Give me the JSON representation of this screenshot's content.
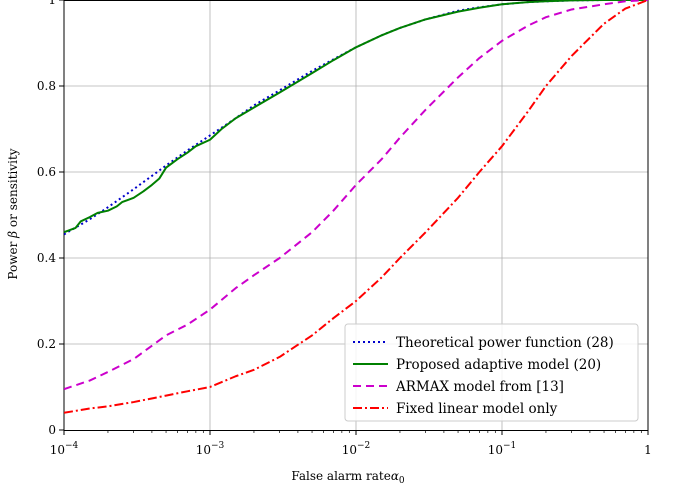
{
  "chart_data": {
    "type": "line",
    "xlabel": "False alarm rate",
    "xlabel_symbol": "α",
    "xlabel_sub": "0",
    "ylabel": "Power",
    "ylabel_symbol": "β",
    "ylabel_suffix": "or sensitivity",
    "x_scale": "log",
    "xlim": [
      0.0001,
      1
    ],
    "ylim": [
      0,
      1
    ],
    "grid": true,
    "legend_position": "bottom-right",
    "x_ticks": [
      {
        "value": 0.0001,
        "base": "10",
        "exp": "−4"
      },
      {
        "value": 0.001,
        "base": "10",
        "exp": "−3"
      },
      {
        "value": 0.01,
        "base": "10",
        "exp": "−2"
      },
      {
        "value": 0.1,
        "base": "10",
        "exp": "−1"
      },
      {
        "value": 1,
        "base": "1",
        "exp": ""
      }
    ],
    "y_ticks": [
      {
        "value": 0,
        "label": "0"
      },
      {
        "value": 0.2,
        "label": "0.2"
      },
      {
        "value": 0.4,
        "label": "0.4"
      },
      {
        "value": 0.6,
        "label": "0.6"
      },
      {
        "value": 0.8,
        "label": "0.8"
      },
      {
        "value": 1,
        "label": "1"
      }
    ],
    "series": [
      {
        "name": "Theoretical power function (28)",
        "color": "#0000cc",
        "dash": "2,3",
        "x": [
          0.0001,
          0.00015,
          0.0002,
          0.0003,
          0.0005,
          0.0007,
          0.001,
          0.0015,
          0.002,
          0.003,
          0.005,
          0.007,
          0.01,
          0.015,
          0.02,
          0.03,
          0.05,
          0.07,
          0.1,
          0.15,
          0.2,
          0.3,
          0.5,
          0.7,
          1
        ],
        "y": [
          0.455,
          0.49,
          0.518,
          0.56,
          0.615,
          0.65,
          0.685,
          0.725,
          0.755,
          0.79,
          0.835,
          0.862,
          0.89,
          0.918,
          0.935,
          0.955,
          0.975,
          0.983,
          0.99,
          0.995,
          0.997,
          0.999,
          1.0,
          1.0,
          1.0
        ]
      },
      {
        "name": "Proposed adaptive model (20)",
        "color": "#008000",
        "dash": "",
        "x": [
          0.0001,
          0.00012,
          0.00013,
          0.00015,
          0.00017,
          0.0002,
          0.00023,
          0.00025,
          0.0003,
          0.00035,
          0.0004,
          0.00045,
          0.0005,
          0.0006,
          0.0007,
          0.0008,
          0.001,
          0.0012,
          0.0015,
          0.002,
          0.003,
          0.005,
          0.007,
          0.01,
          0.015,
          0.02,
          0.03,
          0.05,
          0.07,
          0.1,
          0.15,
          0.2,
          0.3,
          0.5,
          0.7,
          1
        ],
        "y": [
          0.46,
          0.47,
          0.485,
          0.495,
          0.505,
          0.51,
          0.52,
          0.53,
          0.54,
          0.555,
          0.57,
          0.585,
          0.61,
          0.63,
          0.645,
          0.66,
          0.675,
          0.7,
          0.725,
          0.75,
          0.785,
          0.83,
          0.86,
          0.89,
          0.918,
          0.935,
          0.955,
          0.973,
          0.982,
          0.99,
          0.995,
          0.997,
          0.999,
          1.0,
          1.0,
          1.0
        ]
      },
      {
        "name": "ARMAX model from [13]",
        "color": "#cc00cc",
        "dash": "8,5",
        "x": [
          0.0001,
          0.00015,
          0.0002,
          0.0003,
          0.0005,
          0.0007,
          0.001,
          0.0015,
          0.002,
          0.003,
          0.005,
          0.007,
          0.01,
          0.015,
          0.02,
          0.03,
          0.05,
          0.07,
          0.1,
          0.15,
          0.2,
          0.3,
          0.5,
          0.7,
          1
        ],
        "y": [
          0.095,
          0.115,
          0.135,
          0.165,
          0.22,
          0.245,
          0.28,
          0.33,
          0.36,
          0.4,
          0.46,
          0.51,
          0.57,
          0.63,
          0.68,
          0.745,
          0.82,
          0.865,
          0.905,
          0.94,
          0.96,
          0.978,
          0.99,
          0.997,
          1.0
        ]
      },
      {
        "name": "Fixed linear model only",
        "color": "#ff0000",
        "dash": "9,3,2,3",
        "x": [
          0.0001,
          0.00015,
          0.0002,
          0.0003,
          0.0005,
          0.0007,
          0.001,
          0.0015,
          0.002,
          0.003,
          0.005,
          0.007,
          0.01,
          0.015,
          0.02,
          0.03,
          0.05,
          0.07,
          0.1,
          0.15,
          0.2,
          0.3,
          0.5,
          0.7,
          1
        ],
        "y": [
          0.04,
          0.05,
          0.055,
          0.065,
          0.08,
          0.09,
          0.1,
          0.125,
          0.14,
          0.17,
          0.22,
          0.26,
          0.3,
          0.355,
          0.4,
          0.46,
          0.54,
          0.6,
          0.66,
          0.74,
          0.8,
          0.87,
          0.945,
          0.98,
          1.0
        ]
      }
    ]
  }
}
